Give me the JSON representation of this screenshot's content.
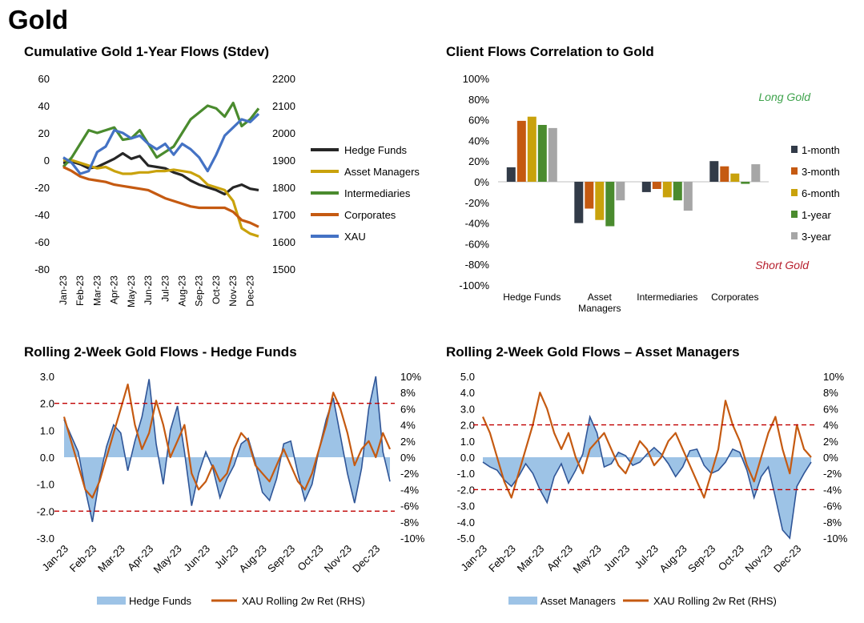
{
  "page": {
    "title": "Gold"
  },
  "colors": {
    "hedge": "#262626",
    "asset": "#C9A20C",
    "inter": "#4A8B2E",
    "corp": "#C55A11",
    "xau": "#4472C4",
    "grey": "#A6A6A6",
    "fill": "#9DC3E6",
    "line": "#2F5597",
    "red": "#C00000",
    "long": "#3FA34D",
    "short": "#B7202E"
  },
  "chart_data": [
    {
      "type": "line",
      "title": "Cumulative Gold 1-Year Flows (Stdev)",
      "x_labels": [
        "Jan-23",
        "Feb-23",
        "Mar-23",
        "Apr-23",
        "May-23",
        "Jun-23",
        "Jul-23",
        "Aug-23",
        "Sep-23",
        "Oct-23",
        "Nov-23",
        "Dec-23"
      ],
      "ylim_left": [
        -80,
        60
      ],
      "yticks_left": [
        "60",
        "40",
        "20",
        "0",
        "-20",
        "-40",
        "-60",
        "-80"
      ],
      "ylim_right": [
        1500,
        2200
      ],
      "yticks_right": [
        "2200",
        "2100",
        "2000",
        "1900",
        "1800",
        "1700",
        "1600",
        "1500"
      ],
      "legend_position": "right",
      "series": [
        {
          "name": "Hedge Funds",
          "axis": "left",
          "color": "#262626",
          "x": [
            0,
            0.5,
            1,
            1.5,
            2,
            2.5,
            3,
            3.5,
            4,
            4.5,
            5,
            5.5,
            6,
            6.5,
            7,
            7.5,
            8,
            8.5,
            9,
            9.5,
            10,
            10.5,
            11,
            11.5
          ],
          "y": [
            -2,
            -1,
            -3,
            -6,
            -5,
            -2,
            1,
            5,
            1,
            3,
            -4,
            -5,
            -6,
            -9,
            -11,
            -15,
            -18,
            -20,
            -22,
            -25,
            -20,
            -18,
            -21,
            -22
          ]
        },
        {
          "name": "Asset Managers",
          "axis": "left",
          "color": "#C9A20C",
          "x": [
            0,
            0.5,
            1,
            1.5,
            2,
            2.5,
            3,
            3.5,
            4,
            4.5,
            5,
            5.5,
            6,
            6.5,
            7,
            7.5,
            8,
            8.5,
            9,
            9.5,
            10,
            10.5,
            11,
            11.5
          ],
          "y": [
            0,
            0,
            -2,
            -4,
            -6,
            -5,
            -8,
            -10,
            -10,
            -9,
            -9,
            -8,
            -8,
            -7,
            -8,
            -9,
            -12,
            -18,
            -20,
            -22,
            -30,
            -50,
            -54,
            -56
          ]
        },
        {
          "name": "Intermediaries",
          "axis": "left",
          "color": "#4A8B2E",
          "x": [
            0,
            0.5,
            1,
            1.5,
            2,
            2.5,
            3,
            3.5,
            4,
            4.5,
            5,
            5.5,
            6,
            6.5,
            7,
            7.5,
            8,
            8.5,
            9,
            9.5,
            10,
            10.5,
            11,
            11.5
          ],
          "y": [
            -5,
            2,
            12,
            22,
            20,
            22,
            24,
            15,
            16,
            22,
            12,
            2,
            6,
            10,
            20,
            30,
            35,
            40,
            38,
            32,
            42,
            25,
            30,
            38
          ]
        },
        {
          "name": "Corporates",
          "axis": "left",
          "color": "#C55A11",
          "x": [
            0,
            0.5,
            1,
            1.5,
            2,
            2.5,
            3,
            3.5,
            4,
            4.5,
            5,
            5.5,
            6,
            6.5,
            7,
            7.5,
            8,
            8.5,
            9,
            9.5,
            10,
            10.5,
            11,
            11.5
          ],
          "y": [
            -5,
            -8,
            -12,
            -14,
            -15,
            -16,
            -18,
            -19,
            -20,
            -21,
            -22,
            -25,
            -28,
            -30,
            -32,
            -34,
            -35,
            -35,
            -35,
            -35,
            -38,
            -44,
            -46,
            -49
          ]
        },
        {
          "name": "XAU",
          "axis": "right",
          "color": "#4472C4",
          "x": [
            0,
            0.5,
            1,
            1.5,
            2,
            2.5,
            3,
            3.5,
            4,
            4.5,
            5,
            5.5,
            6,
            6.5,
            7,
            7.5,
            8,
            8.5,
            9,
            9.5,
            10,
            10.5,
            11,
            11.5
          ],
          "y": [
            1910,
            1890,
            1850,
            1860,
            1930,
            1950,
            2010,
            2000,
            1980,
            1990,
            1960,
            1940,
            1960,
            1920,
            1960,
            1940,
            1910,
            1860,
            1920,
            1990,
            2020,
            2050,
            2040,
            2070
          ]
        }
      ]
    },
    {
      "type": "bar",
      "title": "Client Flows Correlation to Gold",
      "categories": [
        "Hedge Funds",
        "Asset Managers",
        "Intermediaries",
        "Corporates"
      ],
      "category_lines": [
        [
          "Hedge Funds"
        ],
        [
          "Asset",
          "Managers"
        ],
        [
          "Intermediaries"
        ],
        [
          "Corporates"
        ]
      ],
      "ylim": [
        -100,
        100
      ],
      "yticks": [
        "100%",
        "80%",
        "60%",
        "40%",
        "20%",
        "0%",
        "-20%",
        "-40%",
        "-60%",
        "-80%",
        "-100%"
      ],
      "legend_position": "right",
      "series": [
        {
          "name": "1-month",
          "color": "#323B48",
          "values": [
            14,
            -40,
            -10,
            20
          ]
        },
        {
          "name": "3-month",
          "color": "#C55A11",
          "values": [
            59,
            -26,
            -7,
            15
          ]
        },
        {
          "name": "6-month",
          "color": "#C9A20C",
          "values": [
            63,
            -37,
            -15,
            8
          ]
        },
        {
          "name": "1-year",
          "color": "#4A8B2E",
          "values": [
            55,
            -43,
            -18,
            -2
          ]
        },
        {
          "name": "3-year",
          "color": "#A6A6A6",
          "values": [
            52,
            -18,
            -28,
            17
          ]
        }
      ],
      "annotations": [
        {
          "text": "Long Gold",
          "color": "#3FA34D"
        },
        {
          "text": "Short Gold",
          "color": "#B7202E"
        }
      ]
    },
    {
      "type": "area",
      "title": "Rolling 2-Week Gold Flows - Hedge Funds",
      "x_labels": [
        "Jan-23",
        "Feb-23",
        "Mar-23",
        "Apr-23",
        "May-23",
        "Jun-23",
        "Jul-23",
        "Aug-23",
        "Sep-23",
        "Oct-23",
        "Nov-23",
        "Dec-23"
      ],
      "ylim_left": [
        -3,
        3
      ],
      "yticks_left": [
        "3.0",
        "2.0",
        "1.0",
        "0.0",
        "-1.0",
        "-2.0",
        "-3.0"
      ],
      "ylim_right": [
        -10,
        10
      ],
      "yticks_right": [
        "10%",
        "8%",
        "6%",
        "4%",
        "2%",
        "0%",
        "-2%",
        "-4%",
        "-6%",
        "-8%",
        "-10%"
      ],
      "reference_lines": [
        2,
        -2
      ],
      "series": [
        {
          "name": "Hedge Funds",
          "axis": "left",
          "style": "area",
          "x": [
            0,
            0.25,
            0.5,
            0.75,
            1,
            1.25,
            1.5,
            1.75,
            2,
            2.25,
            2.5,
            2.75,
            3,
            3.25,
            3.5,
            3.75,
            4,
            4.25,
            4.5,
            4.75,
            5,
            5.25,
            5.5,
            5.75,
            6,
            6.25,
            6.5,
            6.75,
            7,
            7.25,
            7.5,
            7.75,
            8,
            8.25,
            8.5,
            8.75,
            9,
            9.25,
            9.5,
            9.75,
            10,
            10.25,
            10.5,
            10.75,
            11,
            11.25,
            11.5
          ],
          "y": [
            1.4,
            0.8,
            0.2,
            -1.2,
            -2.4,
            -0.8,
            0.4,
            1.2,
            0.9,
            -0.5,
            0.6,
            1.5,
            2.9,
            0.5,
            -1.0,
            1.0,
            1.9,
            0.2,
            -1.8,
            -0.6,
            0.2,
            -0.4,
            -1.5,
            -0.8,
            -0.3,
            0.5,
            0.7,
            -0.2,
            -1.3,
            -1.6,
            -0.8,
            0.5,
            0.6,
            -0.6,
            -1.6,
            -1.0,
            0.3,
            1.4,
            2.2,
            0.8,
            -0.6,
            -1.7,
            -0.4,
            1.8,
            3.0,
            0.2,
            -0.9
          ]
        },
        {
          "name": "XAU Rolling 2w Ret (RHS)",
          "axis": "right",
          "style": "line",
          "x": [
            0,
            0.25,
            0.5,
            0.75,
            1,
            1.25,
            1.5,
            1.75,
            2,
            2.25,
            2.5,
            2.75,
            3,
            3.25,
            3.5,
            3.75,
            4,
            4.25,
            4.5,
            4.75,
            5,
            5.25,
            5.5,
            5.75,
            6,
            6.25,
            6.5,
            6.75,
            7,
            7.25,
            7.5,
            7.75,
            8,
            8.25,
            8.5,
            8.75,
            9,
            9.25,
            9.5,
            9.75,
            10,
            10.25,
            10.5,
            10.75,
            11,
            11.25,
            11.5
          ],
          "y": [
            5,
            2,
            -1,
            -4,
            -5,
            -3,
            0,
            3,
            6,
            9,
            4,
            1,
            3,
            7,
            4,
            0,
            2,
            4,
            -2,
            -4,
            -3,
            -1,
            -3,
            -2,
            1,
            3,
            2,
            -1,
            -2,
            -3,
            -1,
            1,
            -1,
            -3,
            -4,
            -2,
            1,
            4,
            8,
            6,
            3,
            -1,
            1,
            2,
            0,
            3,
            1
          ]
        }
      ]
    },
    {
      "type": "area",
      "title": "Rolling 2-Week Gold Flows – Asset Managers",
      "x_labels": [
        "Jan-23",
        "Feb-23",
        "Mar-23",
        "Apr-23",
        "May-23",
        "Jun-23",
        "Jul-23",
        "Aug-23",
        "Sep-23",
        "Oct-23",
        "Nov-23",
        "Dec-23"
      ],
      "ylim_left": [
        -5,
        5
      ],
      "yticks_left": [
        "5.0",
        "4.0",
        "3.0",
        "2.0",
        "1.0",
        "0.0",
        "-1.0",
        "-2.0",
        "-3.0",
        "-4.0",
        "-5.0"
      ],
      "ylim_right": [
        -10,
        10
      ],
      "yticks_right": [
        "10%",
        "8%",
        "6%",
        "4%",
        "2%",
        "0%",
        "-2%",
        "-4%",
        "-6%",
        "-8%",
        "-10%"
      ],
      "reference_lines": [
        2,
        -2
      ],
      "series": [
        {
          "name": "Asset Managers",
          "axis": "left",
          "style": "area",
          "x": [
            0,
            0.25,
            0.5,
            0.75,
            1,
            1.25,
            1.5,
            1.75,
            2,
            2.25,
            2.5,
            2.75,
            3,
            3.25,
            3.5,
            3.75,
            4,
            4.25,
            4.5,
            4.75,
            5,
            5.25,
            5.5,
            5.75,
            6,
            6.25,
            6.5,
            6.75,
            7,
            7.25,
            7.5,
            7.75,
            8,
            8.25,
            8.5,
            8.75,
            9,
            9.25,
            9.5,
            9.75,
            10,
            10.25,
            10.5,
            10.75,
            11,
            11.25,
            11.5
          ],
          "y": [
            -0.3,
            -0.6,
            -0.8,
            -1.4,
            -1.8,
            -1.2,
            -0.4,
            -1.0,
            -2.0,
            -2.8,
            -1.2,
            -0.4,
            -1.6,
            -0.8,
            0.2,
            2.5,
            1.5,
            -0.6,
            -0.4,
            0.3,
            0.1,
            -0.5,
            -0.3,
            0.2,
            0.6,
            0.2,
            -0.4,
            -1.2,
            -0.6,
            0.4,
            0.5,
            -0.5,
            -1.0,
            -0.8,
            -0.3,
            0.5,
            0.3,
            -0.8,
            -2.5,
            -1.2,
            -0.6,
            -2.5,
            -4.5,
            -5.0,
            -1.8,
            -1.0,
            -0.3
          ]
        },
        {
          "name": "XAU Rolling 2w Ret (RHS)",
          "axis": "right",
          "style": "line",
          "x": [
            0,
            0.25,
            0.5,
            0.75,
            1,
            1.25,
            1.5,
            1.75,
            2,
            2.25,
            2.5,
            2.75,
            3,
            3.25,
            3.5,
            3.75,
            4,
            4.25,
            4.5,
            4.75,
            5,
            5.25,
            5.5,
            5.75,
            6,
            6.25,
            6.5,
            6.75,
            7,
            7.25,
            7.5,
            7.75,
            8,
            8.25,
            8.5,
            8.75,
            9,
            9.25,
            9.5,
            9.75,
            10,
            10.25,
            10.5,
            10.75,
            11,
            11.25,
            11.5
          ],
          "y": [
            5,
            3,
            0,
            -3,
            -5,
            -2,
            1,
            4,
            8,
            6,
            3,
            1,
            3,
            0,
            -2,
            1,
            2,
            3,
            1,
            -1,
            -2,
            0,
            2,
            1,
            -1,
            0,
            2,
            3,
            1,
            -1,
            -3,
            -5,
            -2,
            1,
            7,
            4,
            2,
            -1,
            -3,
            0,
            3,
            5,
            1,
            -2,
            4,
            1,
            0
          ]
        }
      ]
    }
  ]
}
